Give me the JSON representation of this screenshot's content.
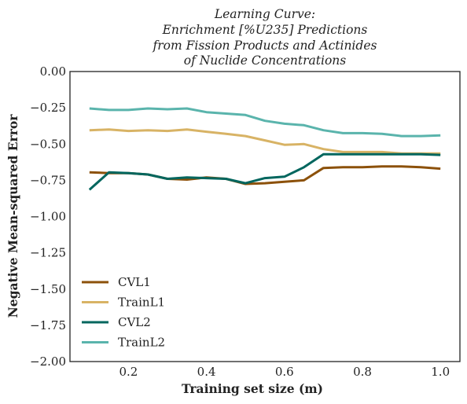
{
  "chart_data": {
    "type": "line",
    "title_lines": [
      "Learning Curve:",
      "Enrichment [%U235] Predictions",
      "from Fission Products and Actinides",
      "of Nuclide Concentrations"
    ],
    "xlabel": "Training set size (m)",
    "ylabel": "Negative Mean-squared Error",
    "xlim": [
      0.05,
      1.05
    ],
    "ylim": [
      -2.0,
      0.0
    ],
    "xticks": [
      0.2,
      0.4,
      0.6,
      0.8,
      1.0
    ],
    "xtick_labels": [
      "0.2",
      "0.4",
      "0.6",
      "0.8",
      "1.0"
    ],
    "yticks": [
      0.0,
      -0.25,
      -0.5,
      -0.75,
      -1.0,
      -1.25,
      -1.5,
      -1.75,
      -2.0
    ],
    "ytick_labels": [
      "0.00",
      "−0.25",
      "−0.50",
      "−0.75",
      "−1.00",
      "−1.25",
      "−1.50",
      "−1.75",
      "−2.00"
    ],
    "grid": false,
    "legend_position": "lower-left",
    "x": [
      0.1,
      0.15,
      0.2,
      0.25,
      0.3,
      0.35,
      0.4,
      0.45,
      0.5,
      0.55,
      0.6,
      0.65,
      0.7,
      0.75,
      0.8,
      0.85,
      0.9,
      0.95,
      1.0
    ],
    "series": [
      {
        "name": "CVL1",
        "color": "#8c510a",
        "values": [
          -0.695,
          -0.7,
          -0.7,
          -0.71,
          -0.74,
          -0.745,
          -0.73,
          -0.74,
          -0.775,
          -0.77,
          -0.76,
          -0.75,
          -0.665,
          -0.66,
          -0.66,
          -0.655,
          -0.655,
          -0.66,
          -0.67
        ]
      },
      {
        "name": "TrainL1",
        "color": "#d8b365",
        "values": [
          -0.405,
          -0.4,
          -0.41,
          -0.405,
          -0.41,
          -0.4,
          -0.415,
          -0.43,
          -0.445,
          -0.475,
          -0.505,
          -0.5,
          -0.535,
          -0.555,
          -0.555,
          -0.555,
          -0.565,
          -0.565,
          -0.565
        ]
      },
      {
        "name": "CVL2",
        "color": "#01665e",
        "values": [
          -0.815,
          -0.695,
          -0.7,
          -0.71,
          -0.74,
          -0.73,
          -0.735,
          -0.74,
          -0.77,
          -0.735,
          -0.725,
          -0.66,
          -0.57,
          -0.57,
          -0.57,
          -0.57,
          -0.57,
          -0.57,
          -0.575
        ]
      },
      {
        "name": "TrainL2",
        "color": "#5ab4ac",
        "values": [
          -0.255,
          -0.265,
          -0.265,
          -0.255,
          -0.26,
          -0.255,
          -0.28,
          -0.29,
          -0.3,
          -0.34,
          -0.36,
          -0.37,
          -0.405,
          -0.425,
          -0.425,
          -0.43,
          -0.445,
          -0.445,
          -0.44
        ]
      }
    ]
  }
}
